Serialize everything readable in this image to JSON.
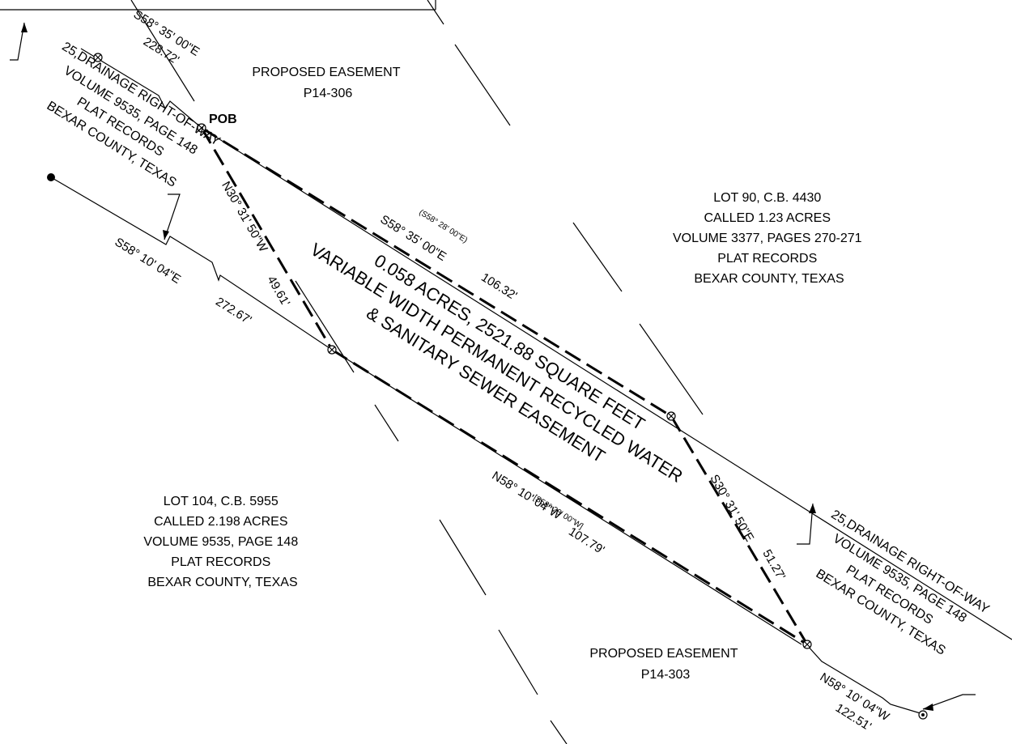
{
  "labels": {
    "proposed_easement_top": [
      "PROPOSED EASEMENT",
      "P14-306"
    ],
    "proposed_easement_bottom": [
      "PROPOSED EASEMENT",
      "P14-303"
    ],
    "lot_90": [
      "LOT 90, C.B. 4430",
      "CALLED 1.23 ACRES",
      "VOLUME 3377, PAGES 270-271",
      "PLAT RECORDS",
      "BEXAR COUNTY, TEXAS"
    ],
    "lot_104": [
      "LOT 104, C.B. 5955",
      "CALLED 2.198 ACRES",
      "VOLUME 9535, PAGE 148",
      "PLAT RECORDS",
      "BEXAR COUNTY, TEXAS"
    ],
    "drainage_row_left": [
      "25,DRAINAGE RIGHT-OF-WAY",
      "VOLUME 9535, PAGE 148",
      "PLAT RECORDS",
      "BEXAR COUNTY, TEXAS"
    ],
    "drainage_row_right": [
      "25,DRAINAGE RIGHT-OF-WAY",
      "VOLUME 9535, PAGE 148",
      "PLAT RECORDS",
      "BEXAR COUNTY, TEXAS"
    ],
    "easement": [
      "0.058 ACRES, 2521.88 SQUARE FEET",
      "VARIABLE WIDTH PERMANENT RECYCLED WATER",
      "& SANITARY SEWER EASEMENT"
    ],
    "pob": "POB"
  },
  "calls": {
    "top_left_bearing": "S58° 35' 00\"E",
    "top_left_distance": "228.72'",
    "left_bearing": "S58° 10' 04\"E",
    "left_distance": "272.67'",
    "west_line_bearing": "N30° 31' 50\"W",
    "west_line_distance": "49.61'",
    "north_line_bearing": "S58° 35' 00\"E",
    "north_line_record": "(S58° 28' 00\"E)",
    "north_line_distance": "106.32'",
    "south_line_bearing": "N58° 10' 04\"W",
    "south_line_record": "[S58° 28' 00\"W]",
    "south_line_distance": "107.79'",
    "east_line_bearing": "S30° 31' 50\"E",
    "east_line_distance": "51.27'",
    "bottom_right_bearing": "N58° 10' 04\"W",
    "bottom_right_distance": "122.51'"
  }
}
